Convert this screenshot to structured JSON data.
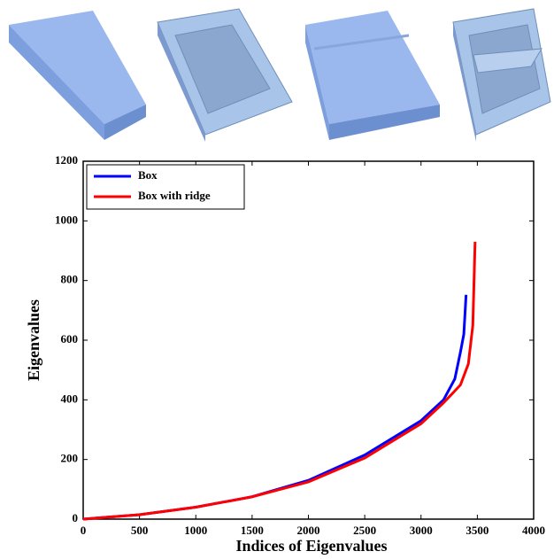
{
  "chart_data": {
    "type": "line",
    "x_label": "Indices of Eigenvalues",
    "y_label": "Eigenvalues",
    "xlim": [
      0,
      4000
    ],
    "ylim": [
      0,
      1200
    ],
    "xticks": [
      0,
      500,
      1000,
      1500,
      2000,
      2500,
      3000,
      3500,
      4000
    ],
    "yticks": [
      0,
      200,
      400,
      600,
      800,
      1000,
      1200
    ],
    "legend": "upper-left",
    "series": [
      {
        "name": "Box",
        "color": "#0000ff",
        "x": [
          0,
          500,
          1000,
          1500,
          2000,
          2500,
          3000,
          3200,
          3300,
          3350,
          3380,
          3400
        ],
        "values": [
          0,
          15,
          40,
          75,
          130,
          215,
          330,
          400,
          470,
          560,
          620,
          752
        ]
      },
      {
        "name": "Box with ridge",
        "color": "#ff0000",
        "x": [
          0,
          500,
          1000,
          1500,
          2000,
          2500,
          3000,
          3200,
          3350,
          3420,
          3460,
          3480
        ],
        "values": [
          0,
          15,
          40,
          75,
          125,
          205,
          320,
          390,
          450,
          520,
          650,
          930
        ]
      }
    ]
  }
}
